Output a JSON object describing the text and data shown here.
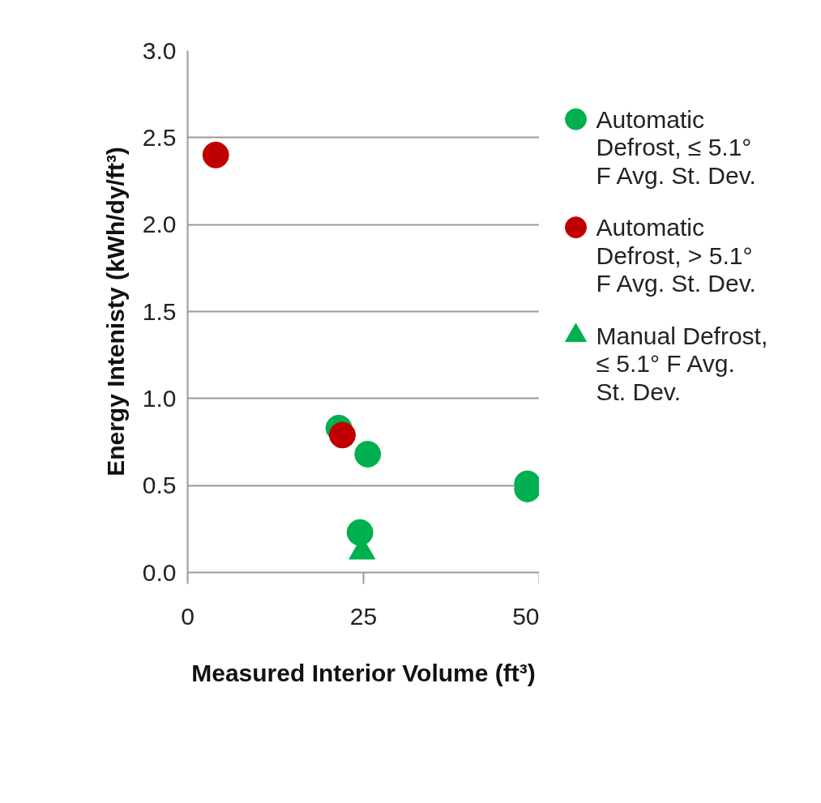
{
  "chart_data": {
    "type": "scatter",
    "xlabel": "Measured Interior Volume (ft³)",
    "ylabel": "Energy Intenisty (kWh/dy/ft³)",
    "xlim": [
      0,
      50
    ],
    "xticks": [
      0,
      25,
      50
    ],
    "ylim": [
      0,
      3
    ],
    "yticks": [
      {
        "value": 0,
        "label": "0.0"
      },
      {
        "value": 0.5,
        "label": "0.5"
      },
      {
        "value": 1,
        "label": "1.0"
      },
      {
        "value": 1.5,
        "label": "1.5"
      },
      {
        "value": 2,
        "label": "2.0"
      },
      {
        "value": 2.5,
        "label": "2.5"
      },
      {
        "value": 3,
        "label": "3.0"
      }
    ],
    "grid": "y",
    "legend": "right",
    "series": [
      {
        "name": "Automatic Defrost, ≤ 5.1° F Avg. St. Dev.",
        "color": "#00b050",
        "marker": "circle",
        "x": [
          21.5,
          25.6,
          48.3,
          48.3,
          24.5
        ],
        "values": [
          0.83,
          0.68,
          0.51,
          0.48,
          0.23
        ]
      },
      {
        "name": "Automatic Defrost, > 5.1° F Avg. St. Dev.",
        "color": "#c00000",
        "marker": "circle",
        "x": [
          4.0,
          22.0
        ],
        "values": [
          2.4,
          0.79
        ]
      },
      {
        "name": "Manual Defrost, ≤ 5.1° F Avg. St. Dev.",
        "color": "#00b050",
        "marker": "triangle",
        "x": [
          24.8
        ],
        "values": [
          0.12
        ]
      }
    ]
  }
}
